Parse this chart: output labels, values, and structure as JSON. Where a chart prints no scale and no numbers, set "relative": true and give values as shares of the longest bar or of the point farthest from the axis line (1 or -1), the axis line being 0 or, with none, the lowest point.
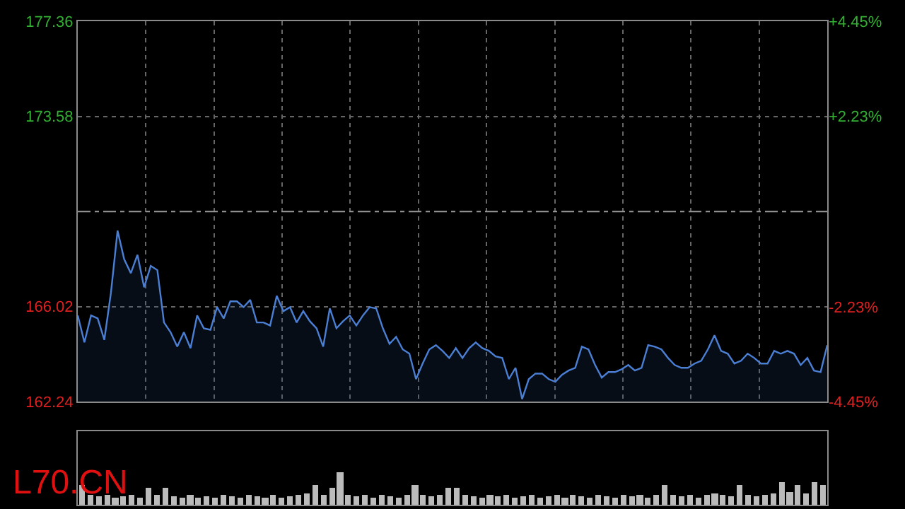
{
  "chart_data": [
    {
      "type": "area",
      "color": "#4a7fd4",
      "categories": [
        null,
        null,
        null,
        null,
        null,
        null,
        null,
        null,
        null,
        null,
        null,
        null,
        null,
        null,
        null,
        null,
        null,
        null,
        null,
        null,
        null,
        null,
        null,
        null,
        null,
        null,
        null,
        null,
        null,
        null,
        null,
        null,
        null,
        null,
        null,
        null,
        null,
        null,
        null,
        null,
        null,
        null,
        null,
        null,
        null,
        null,
        null,
        null,
        null,
        null,
        null,
        null,
        null,
        null,
        null,
        null,
        null,
        null,
        null,
        null,
        null,
        null,
        null,
        null,
        null,
        null,
        null,
        null,
        null,
        null,
        null,
        null,
        null,
        null,
        null,
        null,
        null,
        null,
        null,
        null,
        null,
        null,
        null,
        null,
        null,
        null,
        null,
        null,
        null,
        null,
        null,
        null,
        null,
        null,
        null,
        null,
        null,
        null,
        null,
        null,
        null,
        null,
        null,
        null,
        null,
        null,
        null,
        null,
        null,
        null,
        null,
        null,
        null,
        null
      ],
      "values": [
        165.67,
        164.6,
        165.67,
        165.55,
        164.7,
        166.57,
        169.04,
        167.9,
        167.35,
        168.08,
        166.79,
        167.64,
        167.47,
        165.39,
        165.0,
        164.43,
        165.0,
        164.37,
        165.67,
        165.16,
        165.1,
        166.0,
        165.55,
        166.23,
        166.23,
        166.0,
        166.29,
        165.39,
        165.39,
        165.27,
        166.45,
        165.84,
        166.0,
        165.39,
        165.84,
        165.44,
        165.16,
        164.43,
        165.95,
        165.16,
        165.44,
        165.67,
        165.27,
        165.67,
        166.0,
        165.95,
        165.16,
        164.54,
        164.82,
        164.32,
        164.15,
        163.14,
        163.76,
        164.32,
        164.49,
        164.26,
        163.98,
        164.37,
        163.98,
        164.37,
        164.6,
        164.37,
        164.26,
        164.04,
        163.98,
        163.14,
        163.59,
        162.35,
        163.14,
        163.36,
        163.36,
        163.14,
        163.03,
        163.31,
        163.48,
        163.59,
        164.43,
        164.32,
        163.7,
        163.2,
        163.42,
        163.42,
        163.53,
        163.7,
        163.48,
        163.59,
        164.49,
        164.43,
        164.32,
        163.98,
        163.7,
        163.59,
        163.59,
        163.76,
        163.87,
        164.32,
        164.88,
        164.26,
        164.15,
        163.76,
        163.87,
        164.15,
        163.98,
        163.76,
        163.76,
        164.26,
        164.15,
        164.26,
        164.15,
        163.7,
        163.98,
        163.48,
        163.42,
        164.49
      ],
      "ylim": [
        162.24,
        177.36
      ],
      "yticks": [
        162.24,
        166.02,
        173.58,
        177.36
      ],
      "y2lim": [
        -4.45,
        4.45
      ],
      "y2ticks": [
        {
          "value": -4.45,
          "label": "-4.45%"
        },
        {
          "value": -2.23,
          "label": "-2.23%"
        },
        {
          "value": 2.23,
          "label": "+2.23%"
        },
        {
          "value": 4.45,
          "label": "+4.45%"
        }
      ],
      "ref_lines": [
        {
          "axis": "y",
          "value": 169.8,
          "color": "#9a9a9a",
          "line_style": "dashdot"
        }
      ],
      "grid": true,
      "tick_labels": "y"
    },
    {
      "type": "bar",
      "relative": true,
      "color": "#bbbbbb",
      "annotations": [
        "L70.CN"
      ],
      "categories": [
        null,
        null,
        null,
        null,
        null,
        null,
        null,
        null,
        null,
        null,
        null,
        null,
        null,
        null,
        null,
        null,
        null,
        null,
        null,
        null,
        null,
        null,
        null,
        null,
        null,
        null,
        null,
        null,
        null,
        null,
        null,
        null,
        null,
        null,
        null,
        null,
        null,
        null,
        null,
        null,
        null,
        null,
        null,
        null,
        null,
        null,
        null,
        null,
        null,
        null,
        null,
        null,
        null,
        null,
        null,
        null,
        null,
        null,
        null,
        null,
        null,
        null,
        null,
        null,
        null,
        null,
        null,
        null,
        null,
        null,
        null,
        null,
        null,
        null,
        null,
        null,
        null,
        null,
        null,
        null,
        null,
        null,
        null,
        null,
        null,
        null,
        null,
        null,
        null,
        null
      ],
      "values": [
        0.6,
        0.3,
        0.25,
        0.3,
        0.2,
        0.25,
        0.3,
        0.2,
        0.5,
        0.3,
        0.5,
        0.25,
        0.2,
        0.3,
        0.2,
        0.25,
        0.2,
        0.3,
        0.25,
        0.2,
        0.3,
        0.25,
        0.2,
        0.3,
        0.2,
        0.25,
        0.3,
        0.35,
        0.6,
        0.3,
        0.5,
        1.0,
        0.3,
        0.25,
        0.3,
        0.2,
        0.3,
        0.25,
        0.2,
        0.3,
        0.6,
        0.3,
        0.25,
        0.3,
        0.5,
        0.5,
        0.3,
        0.25,
        0.2,
        0.3,
        0.25,
        0.3,
        0.2,
        0.25,
        0.3,
        0.2,
        0.25,
        0.3,
        0.2,
        0.3,
        0.25,
        0.2,
        0.3,
        0.25,
        0.2,
        0.3,
        0.25,
        0.3,
        0.2,
        0.3,
        0.6,
        0.3,
        0.25,
        0.3,
        0.2,
        0.3,
        0.35,
        0.3,
        0.25,
        0.6,
        0.3,
        0.25,
        0.3,
        0.35,
        0.7,
        0.4,
        0.6,
        0.35,
        0.7,
        0.6
      ]
    }
  ]
}
